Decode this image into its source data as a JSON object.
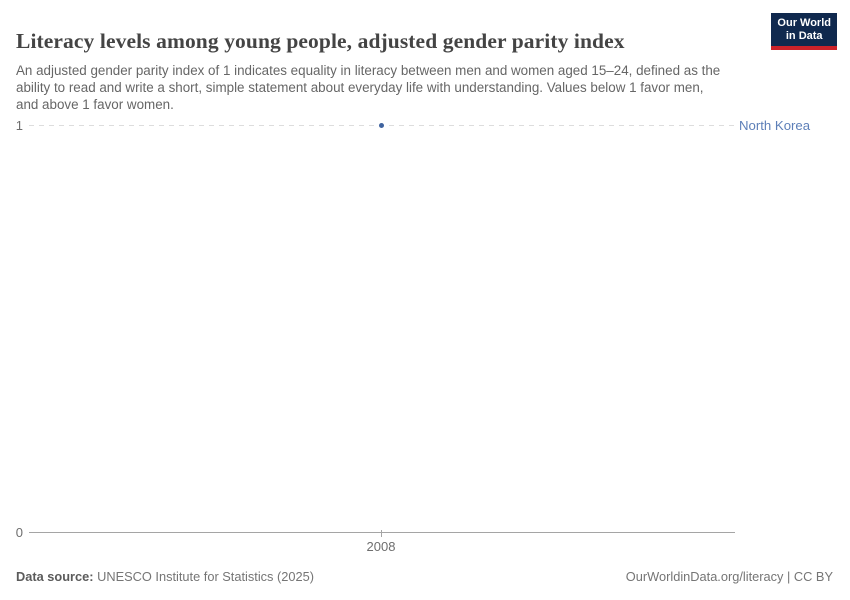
{
  "header": {
    "title": "Literacy levels among young people, adjusted gender parity index",
    "subtitle": "An adjusted gender parity index of 1 indicates equality in literacy between men and women aged 15–24, defined as the ability to read and write a short, simple statement about everyday life with understanding. Values below 1 favor men, and above 1 favor women.",
    "logo_line1": "Our World",
    "logo_line2": "in Data"
  },
  "chart": {
    "y_axis": {
      "top_tick": "1",
      "bottom_tick": "0"
    },
    "x_axis": {
      "tick": "2008"
    },
    "entity_label": "North Korea"
  },
  "chart_data": {
    "type": "scatter",
    "title": "Literacy levels among young people, adjusted gender parity index",
    "series": [
      {
        "name": "North Korea",
        "x": [
          2008
        ],
        "values": [
          1
        ]
      }
    ],
    "xlabel": "",
    "ylabel": "",
    "ylim": [
      0,
      1
    ],
    "x_ticks": [
      2008
    ],
    "y_ticks": [
      0,
      1
    ],
    "grid": "single horizontal dashed gridline at y = 1",
    "legend_position": "entity label right of plot, aligned with point value",
    "point_color": "#3f639f",
    "label_color": "#5d7fb8"
  },
  "footer": {
    "source_label": "Data source:",
    "source_value": "UNESCO Institute for Statistics (2025)",
    "attribution": "OurWorldinData.org/literacy | CC BY"
  },
  "colors": {
    "accent_blue": "#4c6fae",
    "title_text": "#444444",
    "subtitle_text": "#666666",
    "axis_line": "#a5a5a5",
    "gridline": "#dddddd",
    "tick_text": "#6e6e6e",
    "logo_navy": "#10294e",
    "logo_red": "#cc2229"
  }
}
